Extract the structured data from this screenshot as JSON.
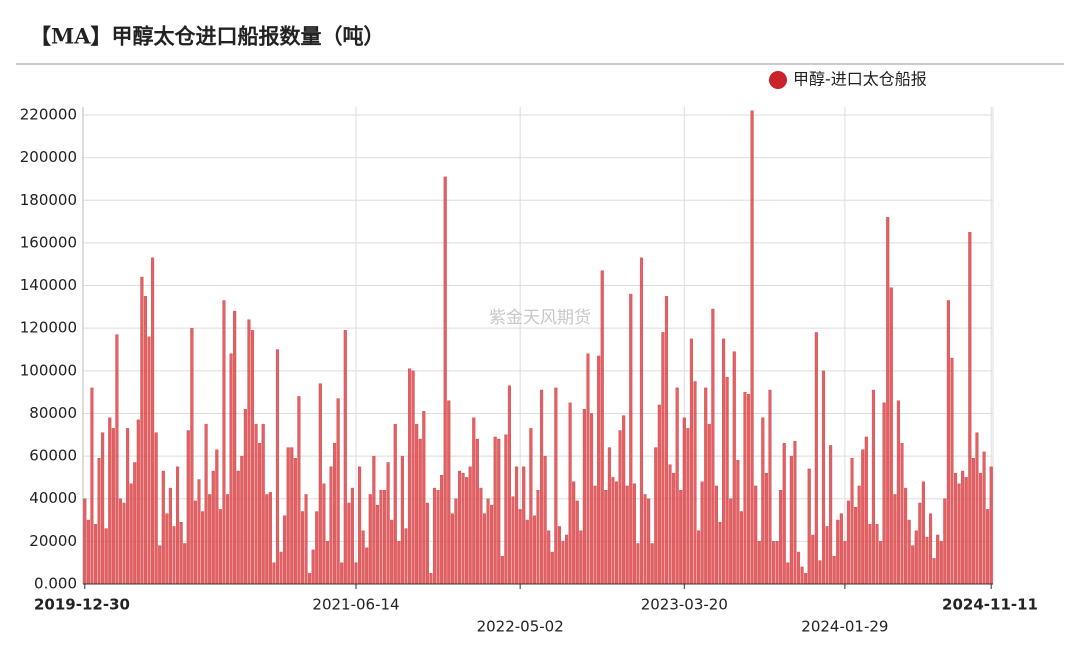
{
  "chart_data": {
    "type": "bar",
    "title": "【MA】甲醇太仓进口船报数量（吨）",
    "watermark": "紫金天风期货",
    "legend_position": "top-right",
    "grid": true,
    "ylim": [
      0,
      220000
    ],
    "yticks": [
      {
        "value": 0,
        "label": "0.000"
      },
      20000,
      40000,
      60000,
      80000,
      100000,
      120000,
      140000,
      160000,
      180000,
      200000,
      220000
    ],
    "categories": [
      "2019-12-30",
      null,
      null,
      null,
      null,
      null,
      null,
      null,
      null,
      null,
      null,
      null,
      null,
      null,
      null,
      null,
      null,
      null,
      null,
      null,
      null,
      null,
      null,
      null,
      null,
      null,
      null,
      null,
      null,
      null,
      null,
      null,
      null,
      null,
      null,
      null,
      null,
      null,
      null,
      null,
      null,
      null,
      null,
      null,
      null,
      null,
      null,
      null,
      null,
      null,
      null,
      null,
      null,
      null,
      null,
      null,
      null,
      null,
      null,
      null,
      null,
      null,
      null,
      null,
      null,
      null,
      null,
      null,
      null,
      null,
      null,
      null,
      null,
      null,
      null,
      null,
      "2021-06-14",
      null,
      null,
      null,
      null,
      null,
      null,
      null,
      null,
      null,
      null,
      null,
      null,
      null,
      null,
      null,
      null,
      null,
      null,
      null,
      null,
      null,
      null,
      null,
      null,
      null,
      null,
      null,
      null,
      null,
      null,
      null,
      null,
      null,
      null,
      null,
      null,
      null,
      null,
      null,
      null,
      null,
      null,
      null,
      null,
      null,
      "2022-05-02",
      null,
      null,
      null,
      null,
      null,
      null,
      null,
      null,
      null,
      null,
      null,
      null,
      null,
      null,
      null,
      null,
      null,
      null,
      null,
      null,
      null,
      null,
      null,
      null,
      null,
      null,
      null,
      null,
      null,
      null,
      null,
      null,
      null,
      null,
      null,
      null,
      null,
      null,
      null,
      null,
      null,
      null,
      null,
      null,
      null,
      "2023-03-20",
      null,
      null,
      null,
      null,
      null,
      null,
      null,
      null,
      null,
      null,
      null,
      null,
      null,
      null,
      null,
      null,
      null,
      null,
      null,
      null,
      null,
      null,
      null,
      null,
      null,
      null,
      null,
      null,
      null,
      null,
      null,
      null,
      null,
      null,
      null,
      null,
      null,
      null,
      null,
      null,
      null,
      null,
      null,
      null,
      "2024-01-29",
      null,
      null,
      null,
      null,
      null,
      null,
      null,
      null,
      null,
      null,
      null,
      null,
      null,
      null,
      null,
      null,
      null,
      null,
      null,
      null,
      null,
      null,
      null,
      null,
      null,
      null,
      null,
      null,
      null,
      null,
      null,
      null,
      null,
      null,
      null,
      null,
      null,
      null,
      null,
      null,
      "2024-11-11"
    ],
    "series": [
      {
        "name": "甲醇-进口太仓船报",
        "color": "#d9464a",
        "values": [
          40000,
          30000,
          92000,
          28000,
          59000,
          71000,
          26000,
          78000,
          73000,
          117000,
          40000,
          38000,
          73000,
          47000,
          57000,
          77000,
          144000,
          135000,
          116000,
          153000,
          71000,
          18000,
          53000,
          33000,
          45000,
          27000,
          55000,
          29000,
          19000,
          72000,
          120000,
          39000,
          49000,
          34000,
          75000,
          42000,
          53000,
          63000,
          35000,
          133000,
          42000,
          108000,
          128000,
          53000,
          60000,
          82000,
          124000,
          119000,
          75000,
          66000,
          75000,
          42000,
          43000,
          10000,
          110000,
          15000,
          32000,
          64000,
          64000,
          59000,
          88000,
          34000,
          42000,
          5000,
          16000,
          34000,
          94000,
          47000,
          20000,
          55000,
          66000,
          87000,
          10000,
          119000,
          38000,
          45000,
          10000,
          55000,
          25000,
          17000,
          42000,
          60000,
          37000,
          44000,
          44000,
          57000,
          30000,
          75000,
          20000,
          60000,
          26000,
          101000,
          100000,
          75000,
          68000,
          81000,
          38000,
          5000,
          45000,
          44000,
          51000,
          191000,
          86000,
          33000,
          40000,
          53000,
          52000,
          50000,
          55000,
          78000,
          68000,
          45000,
          33000,
          40000,
          37000,
          69000,
          68000,
          13000,
          70000,
          93000,
          41000,
          55000,
          35000,
          55000,
          30000,
          73000,
          32000,
          44000,
          91000,
          60000,
          25000,
          15000,
          92000,
          27000,
          20000,
          23000,
          85000,
          48000,
          39000,
          25000,
          82000,
          108000,
          80000,
          46000,
          107000,
          147000,
          44000,
          64000,
          50000,
          48000,
          72000,
          79000,
          46000,
          136000,
          47000,
          19000,
          153000,
          42000,
          40000,
          19000,
          64000,
          84000,
          118000,
          135000,
          56000,
          52000,
          92000,
          44000,
          78000,
          73000,
          115000,
          95000,
          25000,
          48000,
          92000,
          75000,
          129000,
          46000,
          29000,
          115000,
          97000,
          40000,
          109000,
          58000,
          34000,
          90000,
          89000,
          222000,
          46000,
          20000,
          78000,
          52000,
          91000,
          20000,
          20000,
          44000,
          66000,
          10000,
          60000,
          67000,
          15000,
          8000,
          5000,
          54000,
          23000,
          118000,
          11000,
          100000,
          27000,
          65000,
          13000,
          30000,
          33000,
          20000,
          39000,
          59000,
          36000,
          46000,
          63000,
          69000,
          28000,
          91000,
          28000,
          20000,
          85000,
          172000,
          139000,
          42000,
          86000,
          66000,
          45000,
          30000,
          18000,
          25000,
          38000,
          48000,
          22000,
          33000,
          12000,
          23000,
          20000,
          40000,
          133000,
          106000,
          52000,
          47000,
          53000,
          50000,
          165000,
          59000,
          71000,
          52000,
          62000,
          35000,
          55000
        ]
      }
    ]
  }
}
